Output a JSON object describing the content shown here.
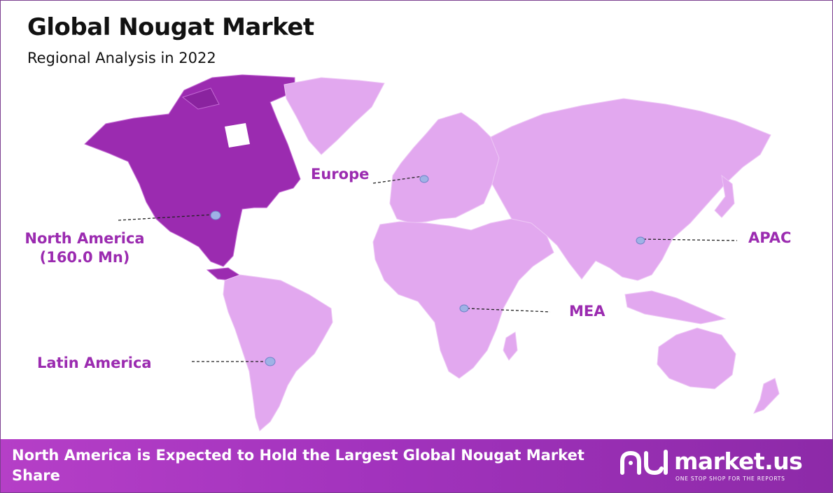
{
  "title": "Global Nougat Market",
  "subtitle": "Regional Analysis in 2022",
  "regions": {
    "north_america": {
      "name": "North America",
      "value": "(160.0 Mn)"
    },
    "europe": {
      "name": "Europe"
    },
    "apac": {
      "name": "APAC"
    },
    "mea": {
      "name": "MEA"
    },
    "latin_america": {
      "name": "Latin America"
    }
  },
  "footer": {
    "text": "North America is Expected to Hold the Largest Global Nougat Market Share"
  },
  "brand": {
    "name": "market.us",
    "tagline": "ONE STOP SHOP FOR THE REPORTS"
  },
  "colors": {
    "highlight_region": "#9b2bb0",
    "other_regions": "#e2a8ef",
    "label_text": "#9b2bb0",
    "footer_bg": "#a233bd",
    "marker": "#9fb2e6"
  }
}
